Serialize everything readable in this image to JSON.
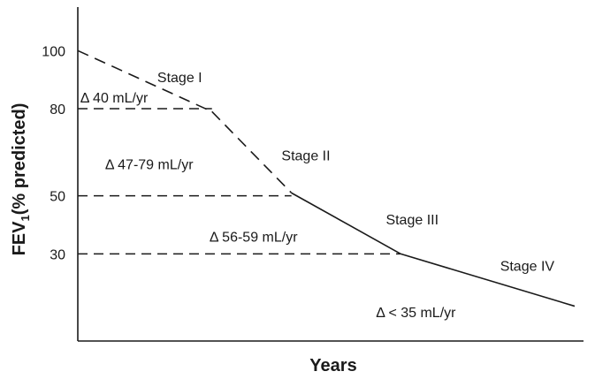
{
  "chart_data": {
    "type": "line",
    "xlabel": "Years",
    "ylabel": "FEV",
    "ylabel_sub": "1",
    "ylabel_suffix": "(% predicted)",
    "ylim": [
      0,
      115
    ],
    "xlim": [
      0,
      10
    ],
    "yticks": [
      100,
      80,
      50,
      30
    ],
    "series": [
      {
        "points": [
          {
            "x": 0,
            "y": 100,
            "style": "dashed"
          },
          {
            "x": 2.7,
            "y": 79
          },
          {
            "x": 4.3,
            "y": 51,
            "style": "solid"
          },
          {
            "x": 6.5,
            "y": 30
          },
          {
            "x": 10,
            "y": 12
          }
        ]
      }
    ],
    "reference_lines": [
      {
        "y": 80,
        "x0": 0,
        "x1": 2.7
      },
      {
        "y": 50,
        "x0": 0,
        "x1": 4.3
      },
      {
        "y": 30,
        "x0": 0,
        "x1": 6.5
      }
    ],
    "annotations": [
      {
        "text": "Stage I",
        "x": 1.6,
        "y": 91
      },
      {
        "text": "Stage II",
        "x": 4.1,
        "y": 64
      },
      {
        "text": "Stage III",
        "x": 6.2,
        "y": 42
      },
      {
        "text": "Stage IV",
        "x": 8.5,
        "y": 26
      },
      {
        "text": "Δ  40 mL/yr",
        "x": 0.05,
        "y": 84
      },
      {
        "text": "Δ  47-79 mL/yr",
        "x": 0.55,
        "y": 61
      },
      {
        "text": "Δ  56-59 mL/yr",
        "x": 2.65,
        "y": 36
      },
      {
        "text": "Δ  < 35 mL/yr",
        "x": 6.0,
        "y": 10
      }
    ]
  }
}
